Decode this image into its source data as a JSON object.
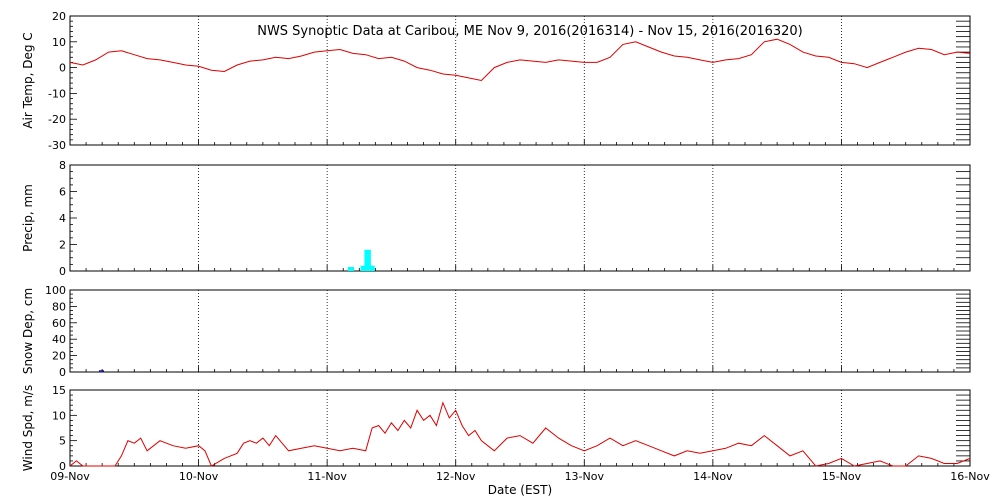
{
  "chart_data": {
    "type": "line",
    "title": "NWS Synoptic Data at Caribou, ME   Nov  9, 2016(2016314) - Nov 15, 2016(2016320)",
    "xlabel": "Date (EST)",
    "x_ticks": [
      "09-Nov",
      "10-Nov",
      "11-Nov",
      "12-Nov",
      "13-Nov",
      "14-Nov",
      "15-Nov",
      "16-Nov"
    ],
    "xlim_days": [
      0,
      7
    ],
    "grid": "vertical dotted at day boundaries",
    "colors": {
      "line": "#e00000",
      "precip": "#00ffff",
      "snow": "#000080"
    },
    "panels": [
      {
        "id": "temp",
        "type": "line",
        "ylabel": "Air Temp, Deg C",
        "ylim": [
          -30,
          20
        ],
        "yticks": [
          20,
          10,
          0,
          -10,
          -20,
          -30
        ],
        "series": {
          "x": [
            0,
            0.1,
            0.2,
            0.3,
            0.4,
            0.5,
            0.6,
            0.7,
            0.8,
            0.9,
            1.0,
            1.1,
            1.2,
            1.3,
            1.4,
            1.5,
            1.6,
            1.7,
            1.8,
            1.9,
            2.0,
            2.1,
            2.2,
            2.3,
            2.4,
            2.5,
            2.6,
            2.7,
            2.8,
            2.9,
            3.0,
            3.1,
            3.2,
            3.3,
            3.4,
            3.5,
            3.6,
            3.7,
            3.8,
            3.9,
            4.0,
            4.1,
            4.2,
            4.3,
            4.4,
            4.5,
            4.6,
            4.7,
            4.8,
            4.9,
            5.0,
            5.1,
            5.2,
            5.3,
            5.4,
            5.5,
            5.6,
            5.7,
            5.8,
            5.9,
            6.0,
            6.1,
            6.2,
            6.3,
            6.4,
            6.5,
            6.6,
            6.7,
            6.8,
            6.9,
            7.0
          ],
          "y": [
            2.0,
            1.0,
            3.0,
            6.0,
            6.5,
            5.0,
            3.5,
            3.0,
            2.0,
            1.0,
            0.5,
            -1.0,
            -1.5,
            1.0,
            2.5,
            3.0,
            4.0,
            3.5,
            4.5,
            6.0,
            6.5,
            7.0,
            5.5,
            5.0,
            3.5,
            4.0,
            2.5,
            0,
            -1.0,
            -2.5,
            -3.0,
            -4.0,
            -5.0,
            0,
            2.0,
            3.0,
            2.5,
            2.0,
            3.0,
            2.5,
            2.0,
            2.0,
            4.0,
            9.0,
            10.0,
            8.0,
            6.0,
            4.5,
            4.0,
            3.0,
            2.0,
            3.0,
            3.5,
            5.0,
            10.0,
            11.0,
            9.0,
            6.0,
            4.5,
            4.0,
            2.0,
            1.5,
            0,
            2.0,
            4.0,
            6.0,
            7.5,
            7.0,
            5.0,
            6.0,
            5.5
          ]
        }
      },
      {
        "id": "precip",
        "type": "bar",
        "ylabel": "Precip, mm",
        "ylim": [
          0,
          8
        ],
        "yticks": [
          8,
          6,
          4,
          2,
          0
        ],
        "bars": [
          {
            "x0": 2.16,
            "x1": 2.21,
            "value": 0.3
          },
          {
            "x0": 2.26,
            "x1": 2.31,
            "value": 0.4
          },
          {
            "x0": 2.29,
            "x1": 2.34,
            "value": 1.6
          },
          {
            "x0": 2.33,
            "x1": 2.37,
            "value": 0.4
          }
        ]
      },
      {
        "id": "snow",
        "type": "bar",
        "ylabel": "Snow Dep, cm",
        "ylim": [
          0,
          100
        ],
        "yticks": [
          100,
          80,
          60,
          40,
          20,
          0
        ],
        "bars": [
          {
            "x0": 0.23,
            "x1": 0.26,
            "value": 1.5
          }
        ]
      },
      {
        "id": "wind",
        "type": "line",
        "ylabel": "Wind Spd, m/s",
        "ylim": [
          0,
          15
        ],
        "yticks": [
          15,
          10,
          5,
          0
        ],
        "series": {
          "x": [
            0,
            0.05,
            0.1,
            0.2,
            0.3,
            0.35,
            0.4,
            0.45,
            0.5,
            0.55,
            0.6,
            0.7,
            0.8,
            0.9,
            1.0,
            1.05,
            1.1,
            1.2,
            1.3,
            1.35,
            1.4,
            1.45,
            1.5,
            1.55,
            1.6,
            1.7,
            1.8,
            1.9,
            2.0,
            2.1,
            2.2,
            2.3,
            2.35,
            2.4,
            2.45,
            2.5,
            2.55,
            2.6,
            2.65,
            2.7,
            2.75,
            2.8,
            2.85,
            2.9,
            2.95,
            3.0,
            3.05,
            3.1,
            3.15,
            3.2,
            3.3,
            3.4,
            3.5,
            3.6,
            3.7,
            3.8,
            3.9,
            4.0,
            4.1,
            4.2,
            4.3,
            4.4,
            4.5,
            4.6,
            4.7,
            4.8,
            4.9,
            5.0,
            5.1,
            5.2,
            5.3,
            5.4,
            5.5,
            5.6,
            5.7,
            5.8,
            5.9,
            6.0,
            6.1,
            6.2,
            6.3,
            6.4,
            6.5,
            6.6,
            6.7,
            6.8,
            6.9,
            7.0
          ],
          "y": [
            0,
            1.0,
            0,
            0,
            0,
            0,
            2.0,
            5.0,
            4.5,
            5.5,
            3.0,
            5.0,
            4.0,
            3.5,
            4.0,
            3.0,
            0,
            1.5,
            2.5,
            4.5,
            5.0,
            4.5,
            5.5,
            4.0,
            6.0,
            3.0,
            3.5,
            4.0,
            3.5,
            3.0,
            3.5,
            3.0,
            7.5,
            8.0,
            6.5,
            8.5,
            7.0,
            9.0,
            7.5,
            11.0,
            9.0,
            10.0,
            8.0,
            12.5,
            9.5,
            11.0,
            8.0,
            6.0,
            7.0,
            5.0,
            3.0,
            5.5,
            6.0,
            4.5,
            7.5,
            5.5,
            4.0,
            3.0,
            4.0,
            5.5,
            4.0,
            5.0,
            4.0,
            3.0,
            2.0,
            3.0,
            2.5,
            3.0,
            3.5,
            4.5,
            4.0,
            6.0,
            4.0,
            2.0,
            3.0,
            0,
            0.5,
            1.5,
            0,
            0.5,
            1.0,
            0,
            0,
            2.0,
            1.5,
            0.5,
            0.5,
            1.5
          ]
        }
      }
    ]
  }
}
